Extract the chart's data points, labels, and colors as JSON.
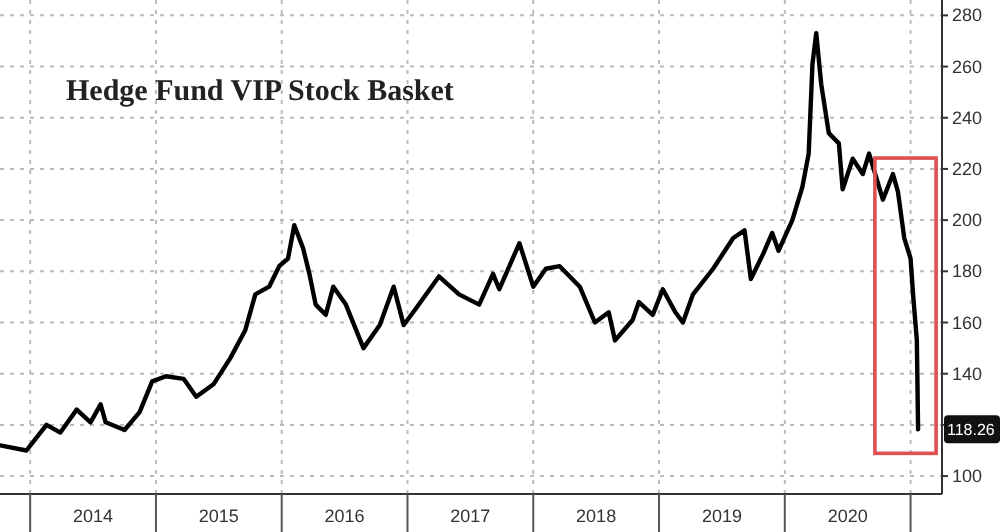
{
  "chart_data": {
    "type": "line",
    "title": "Hedge Fund VIP Stock Basket",
    "x": [
      2013.76,
      2013.97,
      2014.13,
      2014.24,
      2014.37,
      2014.48,
      2014.56,
      2014.6,
      2014.75,
      2014.87,
      2014.97,
      2015.08,
      2015.22,
      2015.32,
      2015.46,
      2015.59,
      2015.71,
      2015.79,
      2015.9,
      2015.98,
      2016.05,
      2016.1,
      2016.17,
      2016.22,
      2016.27,
      2016.35,
      2016.41,
      2016.51,
      2016.65,
      2016.78,
      2016.89,
      2016.97,
      2017.06,
      2017.25,
      2017.41,
      2017.57,
      2017.68,
      2017.73,
      2017.89,
      2018.0,
      2018.1,
      2018.21,
      2018.37,
      2018.49,
      2018.6,
      2018.65,
      2018.79,
      2018.84,
      2018.95,
      2019.03,
      2019.13,
      2019.19,
      2019.27,
      2019.43,
      2019.59,
      2019.68,
      2019.73,
      2019.83,
      2019.9,
      2019.95,
      2020.06,
      2020.14,
      2020.19,
      2020.22,
      2020.25,
      2020.29,
      2020.35,
      2020.43,
      2020.46,
      2020.54,
      2020.62,
      2020.67,
      2020.78,
      2020.86,
      2020.9,
      2020.95,
      2021.0,
      2021.02,
      2021.05,
      2021.06
    ],
    "series": [
      {
        "color": "#000000",
        "value_labels": [
          null,
          null,
          null,
          null,
          null,
          null,
          null,
          null,
          null,
          null,
          null,
          null,
          null,
          null,
          null,
          null,
          null,
          null,
          null,
          null,
          null,
          null,
          null,
          null,
          null,
          null,
          null,
          null,
          null,
          null,
          null,
          null,
          null,
          null,
          null,
          null,
          null,
          null,
          null,
          null,
          null,
          null,
          null,
          null,
          null,
          null,
          null,
          null,
          null,
          null,
          null,
          null,
          null,
          null,
          null,
          null,
          null,
          null,
          null,
          null,
          null,
          null,
          null,
          null,
          null,
          null,
          null,
          null,
          null,
          null,
          null,
          null,
          null,
          null,
          null,
          null,
          null,
          null,
          null,
          "118.26"
        ],
        "values": [
          112,
          110,
          120,
          117,
          126,
          121,
          128,
          121,
          118,
          125,
          137,
          139,
          138,
          131,
          136,
          146,
          157,
          171,
          174,
          182,
          185,
          198,
          189,
          179,
          167,
          163,
          174,
          167,
          150,
          159,
          174,
          159,
          165,
          178,
          171,
          167,
          179,
          173,
          191,
          174,
          181,
          182,
          174,
          160,
          164,
          153,
          161,
          168,
          163,
          173,
          164,
          160,
          171,
          181,
          193,
          196,
          177,
          187,
          195,
          188,
          200,
          213,
          226,
          261,
          273,
          253,
          234,
          230,
          212,
          224,
          218,
          226,
          208,
          218,
          211,
          193,
          185,
          171,
          153,
          118.26
        ]
      }
    ],
    "xlim": [
      2013.76,
      2021.25
    ],
    "xticks": [
      {
        "value": 2014,
        "label": null
      },
      {
        "value": 2014.5,
        "label": "2014"
      },
      {
        "value": 2015,
        "label": null
      },
      {
        "value": 2015.5,
        "label": "2015"
      },
      {
        "value": 2016,
        "label": null
      },
      {
        "value": 2016.5,
        "label": "2016"
      },
      {
        "value": 2017,
        "label": null
      },
      {
        "value": 2017.5,
        "label": "2017"
      },
      {
        "value": 2018,
        "label": null
      },
      {
        "value": 2018.5,
        "label": "2018"
      },
      {
        "value": 2019,
        "label": null
      },
      {
        "value": 2019.5,
        "label": "2019"
      },
      {
        "value": 2020,
        "label": null
      },
      {
        "value": 2020.5,
        "label": "2020"
      },
      {
        "value": 2021,
        "label": null
      }
    ],
    "ylim": [
      93,
      286
    ],
    "yticks": [
      100,
      {
        "value": 120,
        "label": null
      },
      140,
      160,
      180,
      200,
      220,
      240,
      260,
      280
    ],
    "grid": true
  }
}
